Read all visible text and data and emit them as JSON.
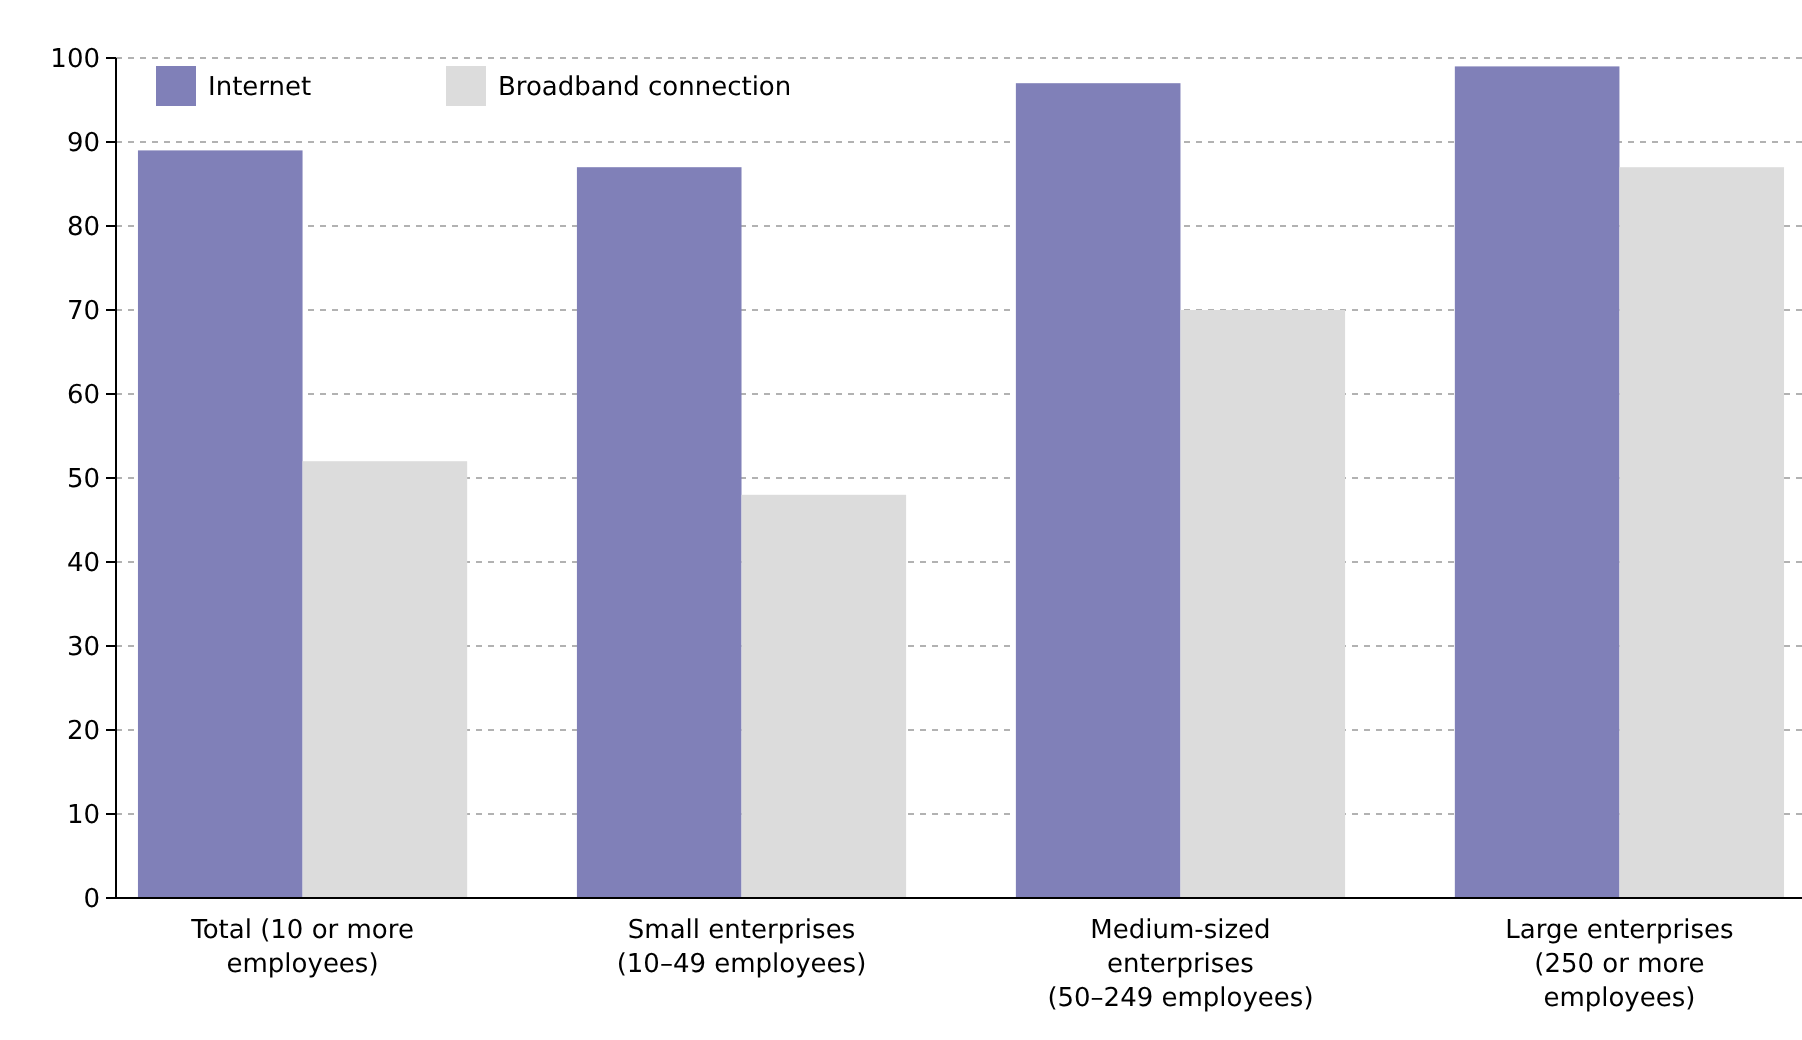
{
  "chart_data": {
    "type": "bar",
    "categories": [
      "Total (10 or more employees)",
      "Small enterprises (10–49 employees)",
      "Medium-sized enterprises (50–249 employees)",
      "Large enterprises (250 or more employees)"
    ],
    "series": [
      {
        "name": "Internet",
        "color": "#8080b8",
        "values": [
          89,
          87,
          97,
          99
        ]
      },
      {
        "name": "Broadband connection",
        "color": "#dcdcdc",
        "values": [
          52,
          48,
          70,
          87
        ]
      }
    ],
    "ylim": [
      0,
      100
    ],
    "yticks": [
      0,
      10,
      20,
      30,
      40,
      50,
      60,
      70,
      80,
      90,
      100
    ],
    "grid": "y",
    "legend": "top left"
  }
}
